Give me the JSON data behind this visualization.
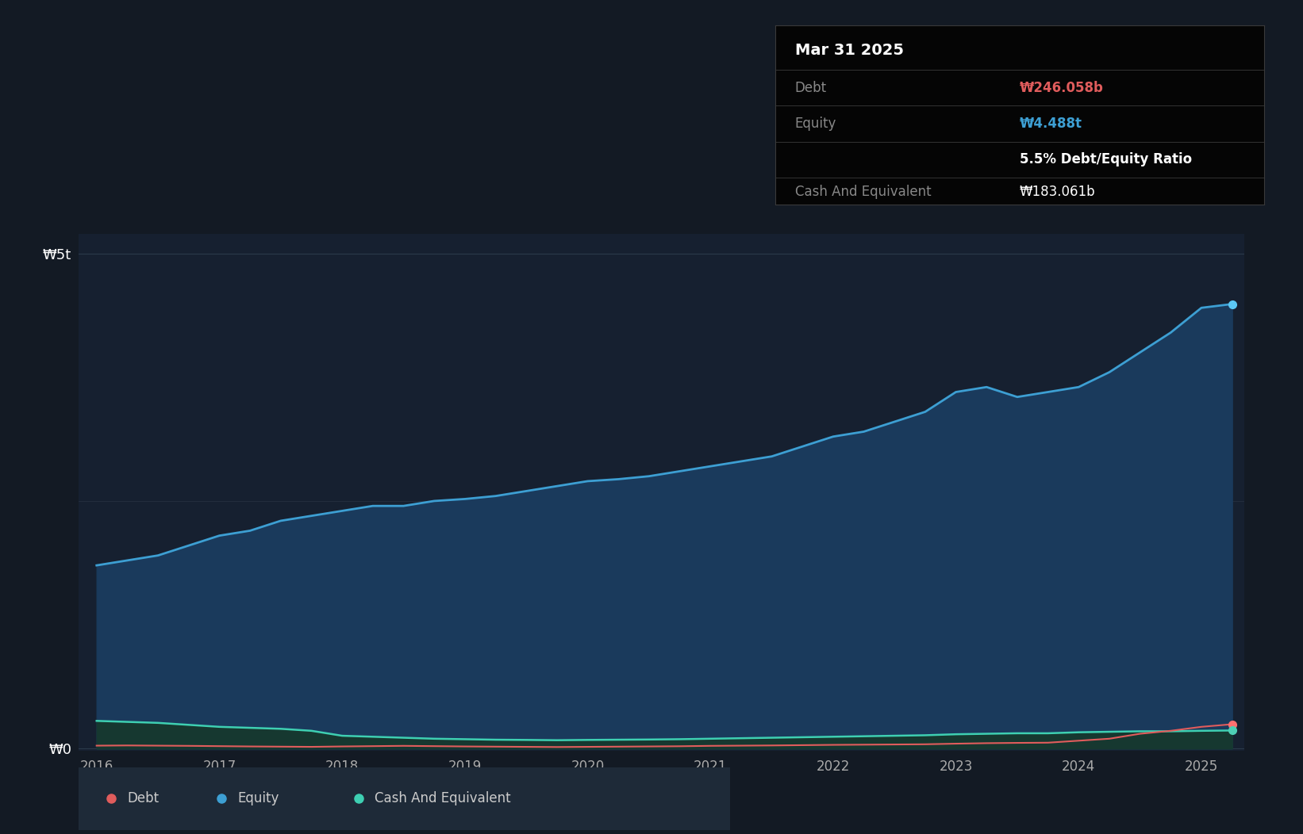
{
  "bg_color": "#131a24",
  "plot_bg_color": "#162030",
  "ylabel_5t": "₩5t",
  "ylabel_0": "₩0",
  "x_start_year": 2015.85,
  "x_end_year": 2025.35,
  "equity_color": "#3d9fd3",
  "equity_fill": "#1a3a5c",
  "debt_color": "#e05c5c",
  "cash_color": "#3ecfb2",
  "cash_fill": "#163830",
  "dot_equity_color": "#5bc8f5",
  "dot_debt_color": "#ff7070",
  "dot_cash_color": "#4ecfb5",
  "legend_dot_debt": "#e05c5c",
  "legend_dot_equity": "#3d9fd3",
  "legend_dot_cash": "#3ecfb2",
  "legend_bg": "#1e2a38",
  "tooltip_bg": "#050505",
  "tooltip_title": "Mar 31 2025",
  "tooltip_debt_label": "Debt",
  "tooltip_debt_value": "₩246.058b",
  "tooltip_equity_label": "Equity",
  "tooltip_equity_value": "₩4.488t",
  "tooltip_ratio": "5.5% Debt/Equity Ratio",
  "tooltip_cash_label": "Cash And Equivalent",
  "tooltip_cash_value": "₩183.061b",
  "grid_color": "#2a3a4a",
  "mid_grid_color": "#263040",
  "tick_label_color": "#aaaaaa",
  "legend_label_color": "#cccccc",
  "years": [
    2016.0,
    2016.25,
    2016.5,
    2016.75,
    2017.0,
    2017.25,
    2017.5,
    2017.75,
    2018.0,
    2018.25,
    2018.5,
    2018.75,
    2019.0,
    2019.25,
    2019.5,
    2019.75,
    2020.0,
    2020.25,
    2020.5,
    2020.75,
    2021.0,
    2021.25,
    2021.5,
    2021.75,
    2022.0,
    2022.25,
    2022.5,
    2022.75,
    2023.0,
    2023.25,
    2023.5,
    2023.75,
    2024.0,
    2024.25,
    2024.5,
    2024.75,
    2025.0,
    2025.25
  ],
  "equity": [
    1850000000000.0,
    1900000000000.0,
    1950000000000.0,
    2050000000000.0,
    2150000000000.0,
    2200000000000.0,
    2300000000000.0,
    2350000000000.0,
    2400000000000.0,
    2450000000000.0,
    2450000000000.0,
    2500000000000.0,
    2520000000000.0,
    2550000000000.0,
    2600000000000.0,
    2650000000000.0,
    2700000000000.0,
    2720000000000.0,
    2750000000000.0,
    2800000000000.0,
    2850000000000.0,
    2900000000000.0,
    2950000000000.0,
    3050000000000.0,
    3150000000000.0,
    3200000000000.0,
    3300000000000.0,
    3400000000000.0,
    3600000000000.0,
    3650000000000.0,
    3550000000000.0,
    3600000000000.0,
    3650000000000.0,
    3800000000000.0,
    4000000000000.0,
    4200000000000.0,
    4450000000000.0,
    4488000000000.0
  ],
  "debt": [
    30000000000.0,
    32000000000.0,
    30000000000.0,
    28000000000.0,
    25000000000.0,
    22000000000.0,
    20000000000.0,
    18000000000.0,
    22000000000.0,
    25000000000.0,
    28000000000.0,
    25000000000.0,
    22000000000.0,
    20000000000.0,
    18000000000.0,
    16000000000.0,
    18000000000.0,
    20000000000.0,
    22000000000.0,
    24000000000.0,
    28000000000.0,
    30000000000.0,
    32000000000.0,
    35000000000.0,
    38000000000.0,
    40000000000.0,
    42000000000.0,
    44000000000.0,
    50000000000.0,
    55000000000.0,
    58000000000.0,
    60000000000.0,
    80000000000.0,
    100000000000.0,
    150000000000.0,
    180000000000.0,
    220000000000.0,
    246058000000.0
  ],
  "cash": [
    280000000000.0,
    270000000000.0,
    260000000000.0,
    240000000000.0,
    220000000000.0,
    210000000000.0,
    200000000000.0,
    180000000000.0,
    130000000000.0,
    120000000000.0,
    110000000000.0,
    100000000000.0,
    95000000000.0,
    90000000000.0,
    88000000000.0,
    85000000000.0,
    88000000000.0,
    90000000000.0,
    92000000000.0,
    95000000000.0,
    100000000000.0,
    105000000000.0,
    110000000000.0,
    115000000000.0,
    120000000000.0,
    125000000000.0,
    130000000000.0,
    135000000000.0,
    145000000000.0,
    150000000000.0,
    155000000000.0,
    155000000000.0,
    165000000000.0,
    170000000000.0,
    175000000000.0,
    175000000000.0,
    180000000000.0,
    183061000000.0
  ],
  "y_max": 5200000000000.0
}
